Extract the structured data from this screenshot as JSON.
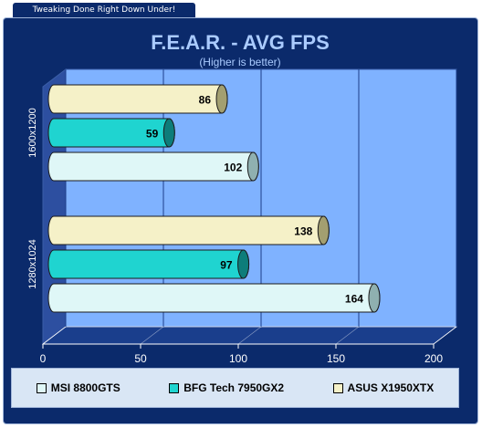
{
  "site_tagline": "Tweaking Done Right Down Under!",
  "colors": {
    "panel": "#0b2a6b",
    "plot_back": "#7fb2ff",
    "plot_floor": "#1a3e8c",
    "title": "#aacbff",
    "axis_text": "#ffffff",
    "legend_bg": "#d9e6f5"
  },
  "chart_data": {
    "type": "bar",
    "orientation": "horizontal",
    "title": "F.E.A.R. - AVG FPS",
    "subtitle": "(Higher is better)",
    "categories": [
      "1600x1200",
      "1280x1024"
    ],
    "series": [
      {
        "name": "MSI 8800GTS",
        "color": "#dff7f7",
        "cap": "#8fb0b0",
        "values": [
          102,
          164
        ]
      },
      {
        "name": "BFG Tech 7950GX2",
        "color": "#1fd4d0",
        "cap": "#0d7d7a",
        "values": [
          59,
          97
        ]
      },
      {
        "name": "ASUS X1950XTX",
        "color": "#f5f1c8",
        "cap": "#a39f70",
        "values": [
          86,
          138
        ]
      }
    ],
    "xlim": [
      0,
      200
    ],
    "xticks": [
      0,
      50,
      100,
      150,
      200
    ],
    "grid": true,
    "legend_position": "bottom"
  }
}
